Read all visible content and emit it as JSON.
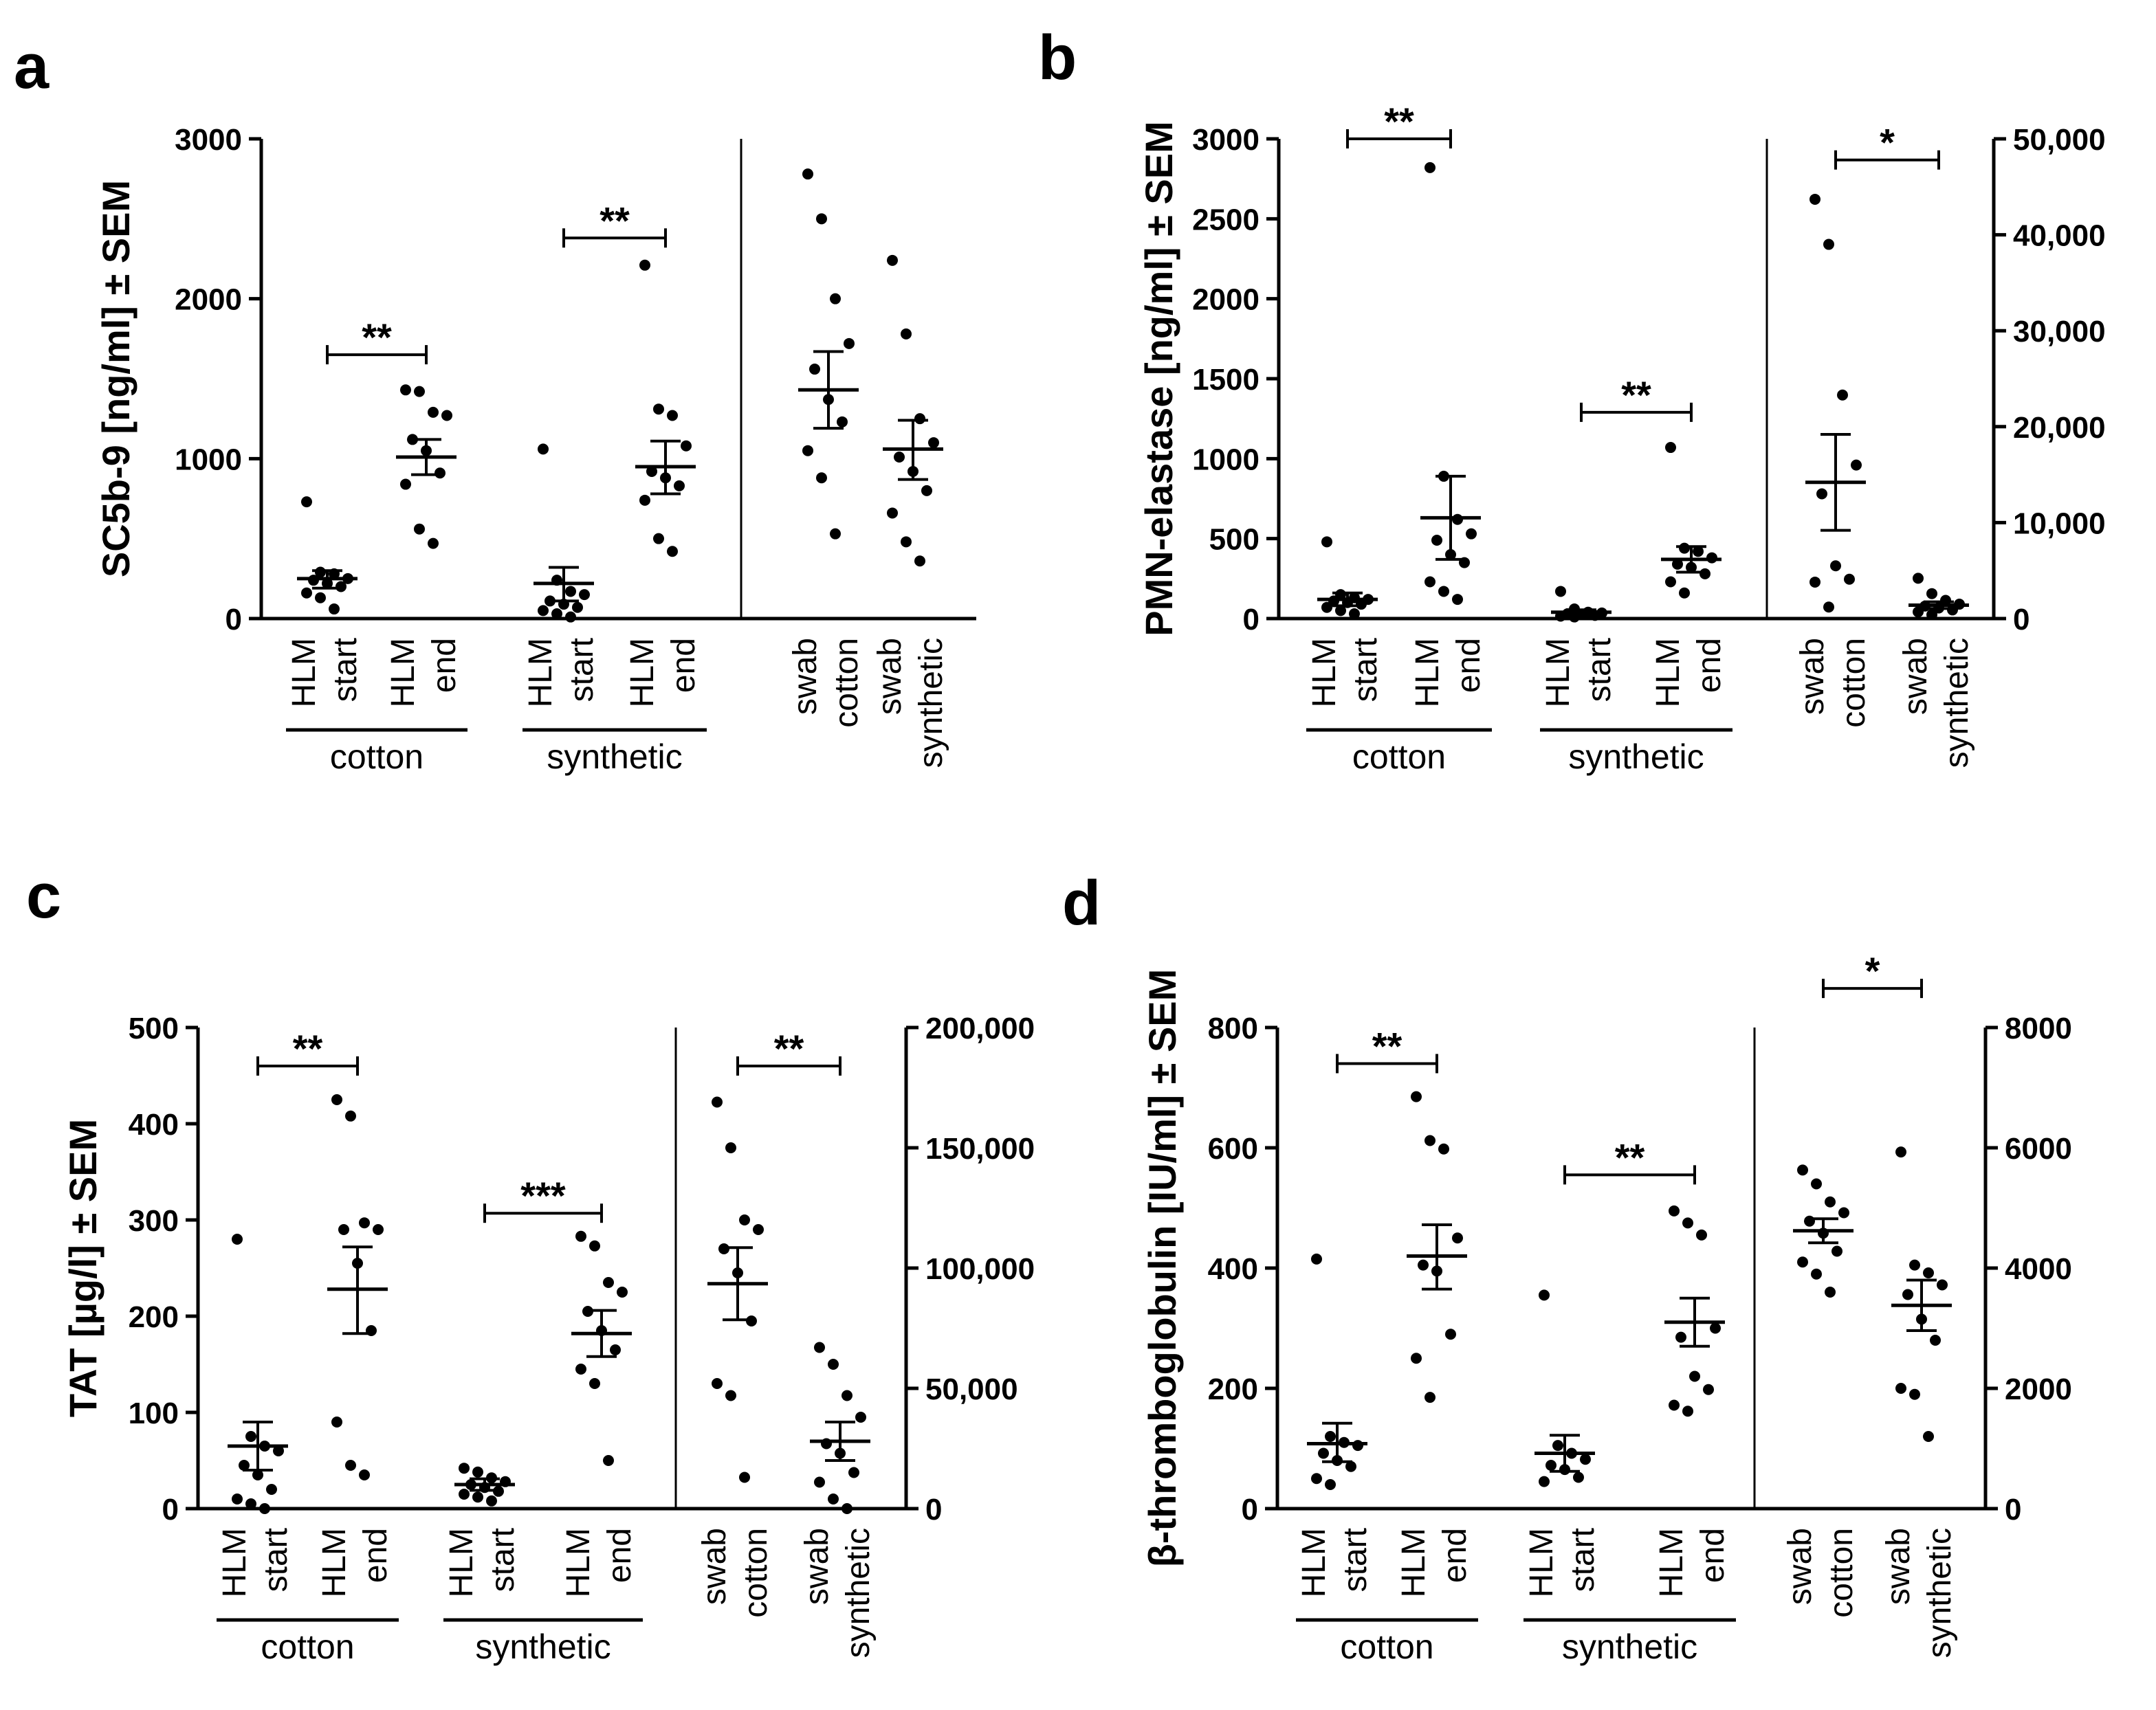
{
  "chart_data": [
    {
      "type": "scatter",
      "panel": "a",
      "ylabel": "SC5b-9 [ng/ml] ± SEM",
      "ylim": [
        0,
        3000
      ],
      "yticks": [
        "0",
        "1000",
        "2000",
        "3000"
      ],
      "yticks_values": [
        0,
        1000,
        2000,
        3000
      ],
      "right_axis": null,
      "categories": [
        {
          "top": "HLM",
          "bottom": "start",
          "group": "cotton",
          "axis": "left",
          "mean": 250,
          "sem_low": 190,
          "sem_high": 300,
          "points": [
            730,
            290,
            280,
            250,
            240,
            220,
            200,
            160,
            130,
            60
          ]
        },
        {
          "top": "HLM",
          "bottom": "end",
          "group": "cotton",
          "axis": "left",
          "mean": 1010,
          "sem_low": 900,
          "sem_high": 1120,
          "points": [
            1430,
            1420,
            1290,
            1270,
            1120,
            1050,
            910,
            840,
            560,
            470
          ]
        },
        {
          "top": "HLM",
          "bottom": "start",
          "group": "synthetic",
          "axis": "left",
          "mean": 220,
          "sem_low": 110,
          "sem_high": 320,
          "points": [
            1060,
            240,
            170,
            150,
            110,
            90,
            70,
            50,
            30,
            10
          ]
        },
        {
          "top": "HLM",
          "bottom": "end",
          "group": "synthetic",
          "axis": "left",
          "mean": 950,
          "sem_low": 780,
          "sem_high": 1110,
          "points": [
            2210,
            1310,
            1270,
            1080,
            920,
            880,
            830,
            740,
            500,
            420
          ]
        },
        {
          "top": "swab",
          "bottom": "cotton",
          "group": "",
          "axis": "left",
          "mean": 1430,
          "sem_low": 1190,
          "sem_high": 1670,
          "points": [
            2780,
            2500,
            2000,
            1720,
            1560,
            1370,
            1230,
            1050,
            880,
            530
          ]
        },
        {
          "top": "swab",
          "bottom": "synthetic",
          "group": "",
          "axis": "left",
          "mean": 1060,
          "sem_low": 870,
          "sem_high": 1240,
          "points": [
            2240,
            1780,
            1250,
            1100,
            1010,
            920,
            800,
            660,
            480,
            360
          ]
        }
      ],
      "groups": [
        {
          "label": "cotton",
          "from": 0,
          "to": 1
        },
        {
          "label": "synthetic",
          "from": 2,
          "to": 3
        }
      ],
      "brackets": [
        {
          "from": 0,
          "to": 1,
          "y": 1650,
          "axis": "left",
          "label": "**"
        },
        {
          "from": 2,
          "to": 3,
          "y": 2380,
          "axis": "left",
          "label": "**"
        }
      ]
    },
    {
      "type": "scatter",
      "panel": "b",
      "ylabel": "PMN-elastase [ng/ml] ± SEM",
      "ylim": [
        0,
        3000
      ],
      "yticks": [
        "0",
        "500",
        "1000",
        "1500",
        "2000",
        "2500",
        "3000"
      ],
      "yticks_values": [
        0,
        500,
        1000,
        1500,
        2000,
        2500,
        3000
      ],
      "right_axis": {
        "ylim": [
          0,
          50000
        ],
        "yticks": [
          "0",
          "10,000",
          "20,000",
          "30,000",
          "40,000",
          "50,000"
        ],
        "yticks_values": [
          0,
          10000,
          20000,
          30000,
          40000,
          50000
        ]
      },
      "categories": [
        {
          "top": "HLM",
          "bottom": "start",
          "group": "cotton",
          "axis": "left",
          "mean": 120,
          "sem_low": 80,
          "sem_high": 160,
          "points": [
            480,
            150,
            130,
            120,
            110,
            100,
            90,
            70,
            50,
            30
          ]
        },
        {
          "top": "HLM",
          "bottom": "end",
          "group": "cotton",
          "axis": "left",
          "mean": 630,
          "sem_low": 370,
          "sem_high": 890,
          "points": [
            2820,
            890,
            620,
            530,
            490,
            400,
            350,
            230,
            170,
            120
          ]
        },
        {
          "top": "HLM",
          "bottom": "start",
          "group": "synthetic",
          "axis": "left",
          "mean": 40,
          "sem_low": 25,
          "sem_high": 55,
          "points": [
            170,
            60,
            40,
            35,
            30,
            25,
            20,
            15,
            10
          ]
        },
        {
          "top": "HLM",
          "bottom": "end",
          "group": "synthetic",
          "axis": "left",
          "mean": 370,
          "sem_low": 290,
          "sem_high": 450,
          "points": [
            1070,
            440,
            420,
            380,
            340,
            320,
            280,
            230,
            160
          ]
        },
        {
          "top": "swab",
          "bottom": "cotton",
          "group": "",
          "axis": "right",
          "mean": 14200,
          "sem_low": 9200,
          "sem_high": 19200,
          "points": [
            43700,
            39000,
            23300,
            16000,
            13000,
            5500,
            4100,
            3800,
            1200
          ]
        },
        {
          "top": "swab",
          "bottom": "synthetic",
          "group": "",
          "axis": "right",
          "mean": 1400,
          "sem_low": 1050,
          "sem_high": 1750,
          "points": [
            4200,
            2600,
            1900,
            1500,
            1300,
            1100,
            900,
            700,
            400
          ]
        }
      ],
      "groups": [
        {
          "label": "cotton",
          "from": 0,
          "to": 1
        },
        {
          "label": "synthetic",
          "from": 2,
          "to": 3
        }
      ],
      "brackets": [
        {
          "from": 0,
          "to": 1,
          "y": 3000,
          "axis": "left",
          "label": "**"
        },
        {
          "from": 2,
          "to": 3,
          "y": 1290,
          "axis": "left",
          "label": "**"
        },
        {
          "from": 4,
          "to": 5,
          "y": 47800,
          "axis": "right",
          "label": "*"
        }
      ]
    },
    {
      "type": "scatter",
      "panel": "c",
      "ylabel": "TAT [µg/l] ± SEM",
      "ylim": [
        0,
        500
      ],
      "yticks": [
        "0",
        "100",
        "200",
        "300",
        "400",
        "500"
      ],
      "yticks_values": [
        0,
        100,
        200,
        300,
        400,
        500
      ],
      "right_axis": {
        "ylim": [
          0,
          200000
        ],
        "yticks": [
          "0",
          "50,000",
          "100,000",
          "150,000",
          "200,000"
        ],
        "yticks_values": [
          0,
          50000,
          100000,
          150000,
          200000
        ]
      },
      "categories": [
        {
          "top": "HLM",
          "bottom": "start",
          "group": "cotton",
          "axis": "left",
          "mean": 65,
          "sem_low": 40,
          "sem_high": 90,
          "points": [
            280,
            75,
            65,
            60,
            45,
            35,
            20,
            10,
            5,
            0
          ]
        },
        {
          "top": "HLM",
          "bottom": "end",
          "group": "cotton",
          "axis": "left",
          "mean": 228,
          "sem_low": 182,
          "sem_high": 272,
          "points": [
            425,
            408,
            297,
            290,
            290,
            255,
            185,
            90,
            45,
            35
          ]
        },
        {
          "top": "HLM",
          "bottom": "start",
          "group": "synthetic",
          "axis": "left",
          "mean": 25,
          "sem_low": 19,
          "sem_high": 31,
          "points": [
            42,
            38,
            32,
            28,
            25,
            22,
            18,
            15,
            12,
            8
          ]
        },
        {
          "top": "HLM",
          "bottom": "end",
          "group": "synthetic",
          "axis": "left",
          "mean": 182,
          "sem_low": 158,
          "sem_high": 206,
          "points": [
            283,
            273,
            235,
            225,
            205,
            185,
            165,
            145,
            130,
            50
          ]
        },
        {
          "top": "swab",
          "bottom": "cotton",
          "group": "",
          "axis": "right",
          "mean": 93500,
          "sem_low": 78500,
          "sem_high": 108500,
          "points": [
            169000,
            150000,
            120000,
            116000,
            108000,
            98000,
            78000,
            52000,
            47000,
            13000
          ]
        },
        {
          "top": "swab",
          "bottom": "synthetic",
          "group": "",
          "axis": "right",
          "mean": 28000,
          "sem_low": 20000,
          "sem_high": 36000,
          "points": [
            67000,
            60000,
            47000,
            38000,
            27000,
            23000,
            15000,
            11000,
            4000,
            0
          ]
        }
      ],
      "groups": [
        {
          "label": "cotton",
          "from": 0,
          "to": 1
        },
        {
          "label": "synthetic",
          "from": 2,
          "to": 3
        }
      ],
      "brackets": [
        {
          "from": 0,
          "to": 1,
          "y": 460,
          "axis": "left",
          "label": "**"
        },
        {
          "from": 2,
          "to": 3,
          "y": 307,
          "axis": "left",
          "label": "***"
        },
        {
          "from": 4,
          "to": 5,
          "y": 184000,
          "axis": "right",
          "label": "**"
        }
      ]
    },
    {
      "type": "scatter",
      "panel": "d",
      "ylabel": "β-thromboglobulin [IU/ml] ± SEM",
      "ylim": [
        0,
        800
      ],
      "yticks": [
        "0",
        "200",
        "400",
        "600",
        "800"
      ],
      "yticks_values": [
        0,
        200,
        400,
        600,
        800
      ],
      "right_axis": {
        "ylim": [
          0,
          8000
        ],
        "yticks": [
          "0",
          "2000",
          "4000",
          "6000",
          "8000"
        ],
        "yticks_values": [
          0,
          2000,
          4000,
          6000,
          8000
        ]
      },
      "categories": [
        {
          "top": "HLM",
          "bottom": "start",
          "group": "cotton",
          "axis": "left",
          "mean": 108,
          "sem_low": 78,
          "sem_high": 142,
          "points": [
            415,
            120,
            110,
            105,
            92,
            80,
            70,
            50,
            40
          ]
        },
        {
          "top": "HLM",
          "bottom": "end",
          "group": "cotton",
          "axis": "left",
          "mean": 420,
          "sem_low": 365,
          "sem_high": 472,
          "points": [
            685,
            612,
            598,
            450,
            405,
            395,
            290,
            250,
            185
          ]
        },
        {
          "top": "HLM",
          "bottom": "start",
          "group": "synthetic",
          "axis": "left",
          "mean": 92,
          "sem_low": 62,
          "sem_high": 122,
          "points": [
            355,
            105,
            92,
            82,
            72,
            65,
            52,
            45
          ]
        },
        {
          "top": "HLM",
          "bottom": "end",
          "group": "synthetic",
          "axis": "left",
          "mean": 310,
          "sem_low": 270,
          "sem_high": 350,
          "points": [
            495,
            475,
            455,
            300,
            285,
            220,
            198,
            172,
            162
          ]
        },
        {
          "top": "swab",
          "bottom": "cotton",
          "group": "",
          "axis": "right",
          "mean": 4620,
          "sem_low": 4420,
          "sem_high": 4820,
          "points": [
            5630,
            5400,
            5100,
            4920,
            4780,
            4580,
            4280,
            4100,
            3900,
            3600
          ]
        },
        {
          "top": "swab",
          "bottom": "synthetic",
          "group": "",
          "axis": "right",
          "mean": 3380,
          "sem_low": 2960,
          "sem_high": 3800,
          "points": [
            5930,
            4050,
            3920,
            3720,
            3560,
            3150,
            2800,
            2000,
            1900,
            1200
          ]
        }
      ],
      "groups": [
        {
          "label": "cotton",
          "from": 0,
          "to": 1
        },
        {
          "label": "synthetic",
          "from": 2,
          "to": 3
        }
      ],
      "brackets": [
        {
          "from": 0,
          "to": 1,
          "y": 740,
          "axis": "left",
          "label": "**"
        },
        {
          "from": 2,
          "to": 3,
          "y": 555,
          "axis": "left",
          "label": "**"
        },
        {
          "from": 4,
          "to": 5,
          "y": 8650,
          "axis": "right",
          "label": "*"
        }
      ]
    }
  ]
}
